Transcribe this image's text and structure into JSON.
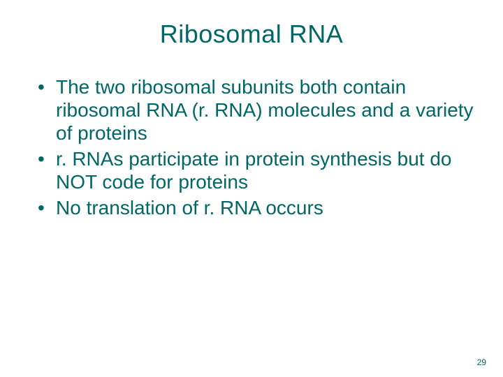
{
  "colors": {
    "text": "#006666",
    "background": "#ffffff"
  },
  "typography": {
    "title_fontsize": 36,
    "body_fontsize": 28,
    "pagenum_fontsize": 12,
    "font_family": "Arial"
  },
  "title": "Ribosomal RNA",
  "bullets": [
    "The two ribosomal subunits both contain ribosomal RNA (r. RNA) molecules and a variety of proteins",
    "r. RNAs participate in protein synthesis but do NOT code for proteins",
    "No translation of r. RNA occurs"
  ],
  "page_number": "29"
}
